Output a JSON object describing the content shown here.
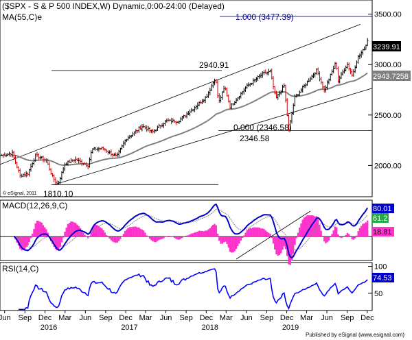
{
  "header": {
    "title": "($SPX - S & P 500 INDEX,W) Dynamic,0:00-24:00 (Delayed)",
    "ma_label": "MA(55,C)e",
    "copyright": "© eSignal, 2011"
  },
  "footer": {
    "published": "Published by eSignal (www.esignal.com)"
  },
  "colors": {
    "up_bar": "#000000",
    "down_bar": "#cc0000",
    "ma_line": "#808080",
    "macd_line": "#0000cc",
    "signal_line": "#808080",
    "histogram": "#ff33cc",
    "rsi_line": "#0000ff",
    "price_tag_bg": "#000000",
    "ma_tag_bg": "#808080",
    "macd_tag_bg": "#0000cc",
    "signal_tag_bg": "#22aa44",
    "hist_tag_bg": "#ff33cc"
  },
  "chart_data": [
    {
      "type": "ohlc",
      "title": "($SPX - S & P 500 INDEX,W) Dynamic,0:00-24:00 (Delayed)",
      "y_ticks": [
        2000,
        2500,
        3000,
        3500
      ],
      "y_tick_labels": [
        "2000.00",
        "2500.00",
        "3000.00",
        "3500.00"
      ],
      "ylim": [
        1690,
        3640
      ],
      "last_price": "3239.91",
      "ma_last": "2943.7258",
      "fib_top": "1.000 (3477.39)",
      "fib_bottom": "0.000 (2346.58)",
      "labels": {
        "high_2018": "2940.91",
        "low_2018": "2346.58",
        "low_2016": "1810.10"
      },
      "close_anchors": [
        [
          "2015-06-01",
          2100
        ],
        [
          "2015-07-20",
          2120
        ],
        [
          "2015-08-24",
          1900
        ],
        [
          "2015-09-28",
          1920
        ],
        [
          "2015-11-02",
          2100
        ],
        [
          "2015-12-21",
          2050
        ],
        [
          "2016-01-19",
          1880
        ],
        [
          "2016-02-11",
          1810
        ],
        [
          "2016-03-15",
          2020
        ],
        [
          "2016-05-01",
          2060
        ],
        [
          "2016-06-27",
          2000
        ],
        [
          "2016-07-15",
          2160
        ],
        [
          "2016-09-01",
          2170
        ],
        [
          "2016-11-04",
          2085
        ],
        [
          "2016-12-15",
          2260
        ],
        [
          "2017-03-01",
          2390
        ],
        [
          "2017-04-14",
          2330
        ],
        [
          "2017-06-15",
          2440
        ],
        [
          "2017-08-10",
          2440
        ],
        [
          "2017-10-15",
          2560
        ],
        [
          "2017-12-15",
          2680
        ],
        [
          "2018-01-26",
          2872
        ],
        [
          "2018-02-09",
          2620
        ],
        [
          "2018-03-09",
          2780
        ],
        [
          "2018-04-02",
          2580
        ],
        [
          "2018-06-15",
          2780
        ],
        [
          "2018-08-29",
          2910
        ],
        [
          "2018-10-01",
          2930
        ],
        [
          "2018-10-26",
          2660
        ],
        [
          "2018-12-03",
          2790
        ],
        [
          "2018-12-24",
          2351
        ],
        [
          "2019-01-20",
          2670
        ],
        [
          "2019-04-30",
          2945
        ],
        [
          "2019-06-03",
          2745
        ],
        [
          "2019-07-26",
          3025
        ],
        [
          "2019-08-05",
          2840
        ],
        [
          "2019-09-15",
          3005
        ],
        [
          "2019-10-08",
          2890
        ],
        [
          "2019-11-01",
          3065
        ],
        [
          "2019-11-29",
          3150
        ],
        [
          "2019-12-20",
          3239.91
        ]
      ],
      "moving_average": {
        "period": 55,
        "type": "exponential"
      }
    },
    {
      "type": "line",
      "title": "MACD(12,26,9,C)",
      "y_ticks": [],
      "values_last": {
        "macd": "80.01",
        "signal": "61.2",
        "histogram": "18.81"
      }
    },
    {
      "type": "line",
      "title": "RSI(14,C)",
      "y_ticks": [
        50,
        100
      ],
      "y_tick_labels": [
        "50",
        "100"
      ],
      "ylim": [
        18,
        107
      ],
      "value_last": "74.53"
    }
  ],
  "x_axis": {
    "month_labels": [
      {
        "date": "2015-06-15",
        "text": "Jun"
      },
      {
        "date": "2015-09-15",
        "text": "Sep"
      },
      {
        "date": "2015-12-15",
        "text": "Dec"
      },
      {
        "date": "2016-03-15",
        "text": "Mar"
      },
      {
        "date": "2016-06-15",
        "text": "Jun"
      },
      {
        "date": "2016-09-15",
        "text": "Sep"
      },
      {
        "date": "2016-12-15",
        "text": "Dec"
      },
      {
        "date": "2017-03-15",
        "text": "Mar"
      },
      {
        "date": "2017-06-15",
        "text": "Jun"
      },
      {
        "date": "2017-09-15",
        "text": "Sep"
      },
      {
        "date": "2017-12-15",
        "text": "Dec"
      },
      {
        "date": "2018-03-15",
        "text": "Mar"
      },
      {
        "date": "2018-06-15",
        "text": "Jun"
      },
      {
        "date": "2018-09-15",
        "text": "Sep"
      },
      {
        "date": "2018-12-15",
        "text": "Dec"
      },
      {
        "date": "2019-03-15",
        "text": "Mar"
      },
      {
        "date": "2019-06-15",
        "text": "Jun"
      },
      {
        "date": "2019-09-15",
        "text": "Sep"
      },
      {
        "date": "2019-12-15",
        "text": "Dec"
      }
    ],
    "year_labels": [
      {
        "date": "2016-01-01",
        "text": "2016"
      },
      {
        "date": "2017-01-01",
        "text": "2017"
      },
      {
        "date": "2018-01-01",
        "text": "2018"
      },
      {
        "date": "2019-01-01",
        "text": "2019"
      }
    ]
  }
}
